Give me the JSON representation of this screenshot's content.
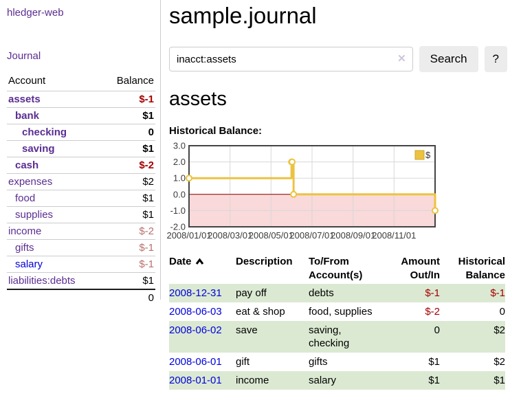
{
  "brand": "hledger-web",
  "sidebar": {
    "journal_label": "Journal",
    "accounts_table": {
      "headers": {
        "account": "Account",
        "balance": "Balance"
      },
      "rows": [
        {
          "account": "assets",
          "indent": 1,
          "selected": true,
          "balance": "$-1",
          "balance_negative": true,
          "balance_bold": true
        },
        {
          "account": "bank",
          "indent": 2,
          "selected": true,
          "balance": "$1",
          "balance_bold": true
        },
        {
          "account": "checking",
          "indent": 3,
          "selected": true,
          "balance": "0",
          "balance_bold": true
        },
        {
          "account": "saving",
          "indent": 3,
          "selected": true,
          "balance": "$1",
          "balance_bold": true
        },
        {
          "account": "cash",
          "indent": 2,
          "selected": true,
          "balance": "$-2",
          "balance_negative": true,
          "balance_bold": true
        },
        {
          "account": "expenses",
          "indent": 1,
          "balance": "$2"
        },
        {
          "account": "food",
          "indent": 2,
          "balance": "$1"
        },
        {
          "account": "supplies",
          "indent": 2,
          "balance": "$1"
        },
        {
          "account": "income",
          "indent": 1,
          "balance": "$-2",
          "balance_muted": true
        },
        {
          "account": "gifts",
          "indent": 2,
          "balance": "$-1",
          "balance_muted": true
        },
        {
          "account": "salary",
          "indent": 2,
          "link_blue": true,
          "balance": "$-1",
          "balance_muted": true
        },
        {
          "account": "liabilities:debts",
          "indent": 1,
          "balance": "$1"
        }
      ],
      "total": "0"
    }
  },
  "header": {
    "title": "sample.journal"
  },
  "search": {
    "value": "inacct:assets",
    "clear_icon": "✕",
    "search_button_label": "Search",
    "help_button_label": "?"
  },
  "account_page": {
    "heading": "assets",
    "chart_title": "Historical Balance:"
  },
  "chart_data": {
    "type": "line",
    "title": "Historical Balance:",
    "series": [
      {
        "name": "$",
        "color": "#edc240",
        "step": true,
        "x": [
          "2008-01-01",
          "2008-06-01",
          "2008-06-02",
          "2008-06-03",
          "2008-12-31"
        ],
        "x_months": [
          0,
          5.0,
          5.03,
          5.1,
          12
        ],
        "y": [
          1,
          2,
          2,
          0,
          -1
        ]
      }
    ],
    "ylim": [
      -2,
      3
    ],
    "yticks": [
      "3.0",
      "2.0",
      "1.0",
      "0.0",
      "-1.0",
      "-2.0"
    ],
    "xlim_months": [
      0,
      12
    ],
    "xtick_months": [
      0,
      2,
      4,
      6,
      8,
      10
    ],
    "xtick_labels": [
      "2008/01/01",
      "2008/03/01",
      "2008/05/01",
      "2008/07/01",
      "2008/09/01",
      "2008/11/01"
    ],
    "grid": true,
    "legend_position": "top-right",
    "negative_region_color": "#f9d9d9",
    "zero_line_color": "#8b0000",
    "grid_color": "#d8d8d8",
    "border_color": "#444444"
  },
  "transactions": {
    "headers": [
      {
        "label": "Date",
        "align": "left",
        "sorted_asc": true
      },
      {
        "label": "Description",
        "align": "left"
      },
      {
        "label": "To/From Account(s)",
        "align": "left"
      },
      {
        "label": "Amount Out/In",
        "align": "right"
      },
      {
        "label": "Historical Balance",
        "align": "right"
      }
    ],
    "rows": [
      {
        "date": "2008-12-31",
        "description": "pay off",
        "to_from": "debts",
        "amount": "$-1",
        "balance": "$-1"
      },
      {
        "date": "2008-06-03",
        "description": "eat & shop",
        "to_from": "food, supplies",
        "amount": "$-2",
        "balance": "0"
      },
      {
        "date": "2008-06-02",
        "description": "save",
        "to_from": "saving,\nchecking",
        "amount": "0",
        "balance": "$2"
      },
      {
        "date": "2008-06-01",
        "description": "gift",
        "to_from": "gifts",
        "amount": "$1",
        "balance": "$2"
      },
      {
        "date": "2008-01-01",
        "description": "income",
        "to_from": "salary",
        "amount": "$1",
        "balance": "$1"
      }
    ]
  },
  "colors": {
    "link_purple": "#5b2d91",
    "link_blue": "#0000dd",
    "negative_red": "#a40000",
    "muted_negative": "#b87070",
    "row_stripe_green": "#dbe9d2",
    "series_gold": "#edc240"
  }
}
